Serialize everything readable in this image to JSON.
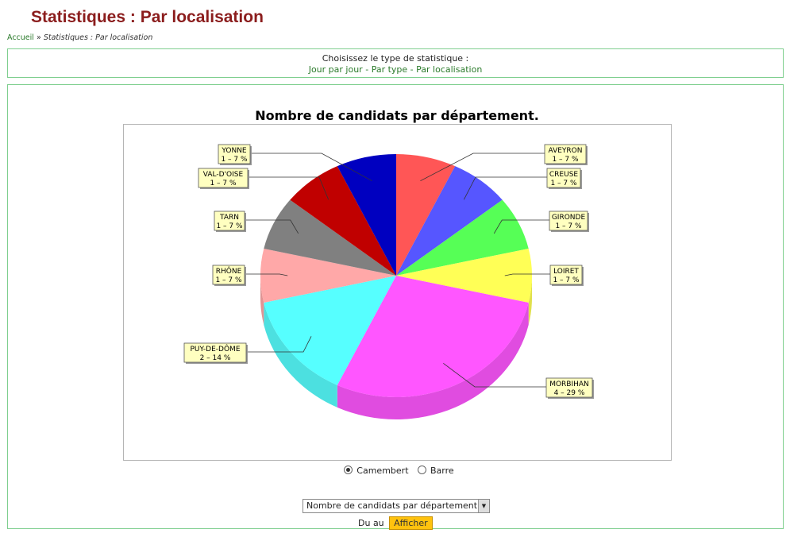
{
  "page": {
    "title": "Statistiques : Par localisation",
    "breadcrumb": {
      "home": "Accueil",
      "separator": "»",
      "current": "Statistiques : Par localisation"
    }
  },
  "type_selector": {
    "prompt": "Choisissez le type de statistique :",
    "links": [
      "Jour par jour",
      "Par type",
      "Par localisation"
    ],
    "separator": "-"
  },
  "chart_data": {
    "type": "pie",
    "title": "Nombre de candidats par département.",
    "slices": [
      {
        "label": "AVEYRON",
        "value": 1,
        "percent": 7,
        "label_text": "1 – 7 %",
        "color": "#ff5656"
      },
      {
        "label": "CREUSE",
        "value": 1,
        "percent": 7,
        "label_text": "1 – 7 %",
        "color": "#5656ff"
      },
      {
        "label": "GIRONDE",
        "value": 1,
        "percent": 7,
        "label_text": "1 – 7 %",
        "color": "#56ff56"
      },
      {
        "label": "LOIRET",
        "value": 1,
        "percent": 7,
        "label_text": "1 – 7 %",
        "color": "#ffff56"
      },
      {
        "label": "MORBIHAN",
        "value": 4,
        "percent": 29,
        "label_text": "4 – 29 %",
        "color": "#ff56ff"
      },
      {
        "label": "PUY-DE-DÔME",
        "value": 2,
        "percent": 14,
        "label_text": "2 – 14 %",
        "color": "#56ffff"
      },
      {
        "label": "RHÔNE",
        "value": 1,
        "percent": 7,
        "label_text": "1 – 7 %",
        "color": "#ffa8a8"
      },
      {
        "label": "TARN",
        "value": 1,
        "percent": 7,
        "label_text": "1 – 7 %",
        "color": "#808080"
      },
      {
        "label": "VAL-D'OISE",
        "value": 1,
        "percent": 7,
        "label_text": "1 – 7 %",
        "color": "#c00000"
      },
      {
        "label": "YONNE",
        "value": 1,
        "percent": 7,
        "label_text": "1 – 7 %",
        "color": "#0000c0"
      }
    ],
    "style": "3d-pie",
    "legend": "callout-labels"
  },
  "chart_options": {
    "type_radios": [
      {
        "label": "Camembert",
        "checked": true
      },
      {
        "label": "Barre",
        "checked": false
      }
    ],
    "select_value": "Nombre de candidats par département.",
    "date_label": "Du au",
    "submit_label": "Afficher"
  },
  "colors": {
    "title": "#8b1d1d",
    "link": "#2a7a2a",
    "border": "#7fcf8f",
    "button": "#ffc20e"
  }
}
